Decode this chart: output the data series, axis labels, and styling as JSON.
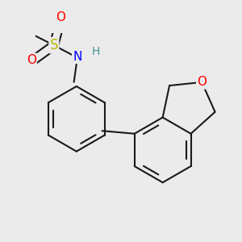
{
  "background_color": "#ebebeb",
  "bond_color": "#1a1a1a",
  "bond_width": 1.5,
  "dbo": 0.055,
  "atom_colors": {
    "S": "#b8b800",
    "O": "#ff0000",
    "N": "#0000ff",
    "H": "#4a9090"
  }
}
